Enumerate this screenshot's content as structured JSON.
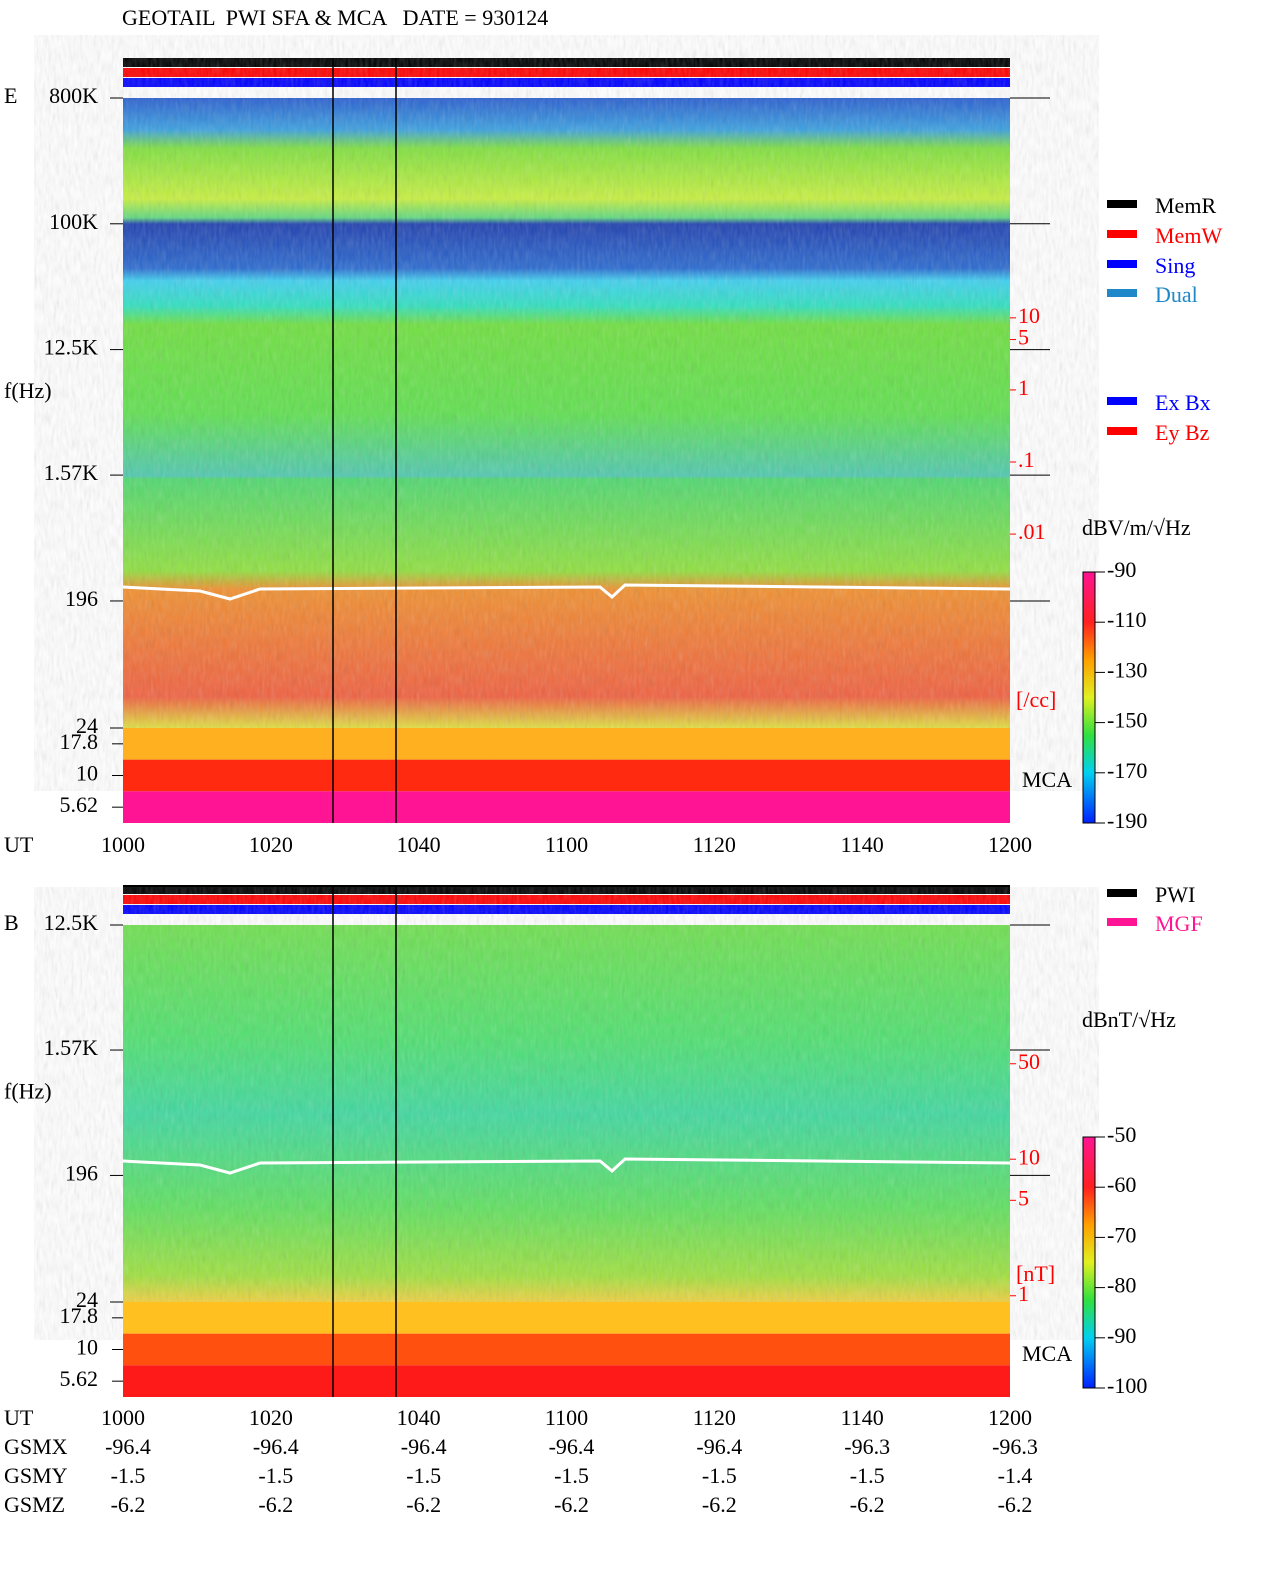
{
  "chart_data": [
    {
      "type": "spectrogram",
      "title": "GEOTAIL  PWI SFA & MCA   DATE = 930124",
      "panel": "E",
      "ylabel": "f(Hz)",
      "yscale": "log",
      "ylim": [
        24,
        800000
      ],
      "yticks": [
        {
          "value": 800000,
          "label": "800K"
        },
        {
          "value": 100000,
          "label": "100K"
        },
        {
          "value": 12500,
          "label": "12.5K"
        },
        {
          "value": 1570,
          "label": "1.57K"
        },
        196,
        24
      ],
      "mca_label": "MCA",
      "mca_yticks": [
        17.8,
        10,
        5.62
      ],
      "xlabel": "UT",
      "xticks": [
        "1000",
        "1020",
        "1040",
        "1100",
        "1120",
        "1140",
        "1200"
      ],
      "y2scale": "log",
      "y2lim": [
        11220,
        2.04e-05
      ],
      "y2ticks": [
        10,
        5,
        1,
        {
          "value": 0.1,
          "label": ".1"
        },
        {
          "value": 0.01,
          "label": ".01"
        }
      ],
      "y2label": "[/cc]",
      "colorbar": {
        "label": "dBV/m/√Hz",
        "lim": [
          -90,
          -190
        ],
        "ticks": [
          -90,
          -110,
          -130,
          -150,
          -170,
          -190
        ]
      },
      "legend": [
        {
          "name": "MemR",
          "color": "#000000"
        },
        {
          "name": "MemW",
          "color": "#ff0000"
        },
        {
          "name": "Sing",
          "color": "#0000ff"
        },
        {
          "name": "Dual",
          "color": "#1e88c8"
        }
      ],
      "legend2": [
        {
          "name": "Ex Bx",
          "color": "#0000ff"
        },
        {
          "name": "Ey Bz",
          "color": "#ff0000"
        }
      ]
    },
    {
      "type": "spectrogram",
      "panel": "B",
      "ylabel": "f(Hz)",
      "yscale": "log",
      "ylim": [
        24,
        12500
      ],
      "yticks": [
        {
          "value": 12500,
          "label": "12.5K"
        },
        {
          "value": 1570,
          "label": "1.57K"
        },
        196,
        24
      ],
      "mca_label": "MCA",
      "mca_yticks": [
        17.8,
        10,
        5.62
      ],
      "xlabel": "UT",
      "xticks": [
        "1000",
        "1020",
        "1040",
        "1100",
        "1120",
        "1140",
        "1200"
      ],
      "y2scale": "log",
      "y2lim": [
        519,
        0.9
      ],
      "y2ticks": [
        50,
        10,
        5,
        1
      ],
      "y2label": "[nT]",
      "colorbar": {
        "label": "dBnT/√Hz",
        "lim": [
          -50,
          -100
        ],
        "ticks": [
          -50,
          -60,
          -70,
          -80,
          -90,
          -100
        ]
      },
      "legend": [
        {
          "name": "PWI",
          "color": "#000000"
        },
        {
          "name": "MGF",
          "color": "#ff1493"
        }
      ],
      "orbit": [
        {
          "name": "GSMX",
          "values": [
            -96.4,
            -96.4,
            -96.4,
            -96.4,
            -96.4,
            -96.3,
            -96.3
          ]
        },
        {
          "name": "GSMY",
          "values": [
            -1.5,
            -1.5,
            -1.5,
            -1.5,
            -1.5,
            -1.5,
            -1.4
          ]
        },
        {
          "name": "GSMZ",
          "values": [
            -6.2,
            -6.2,
            -6.2,
            -6.2,
            -6.2,
            -6.2,
            -6.2
          ]
        }
      ]
    }
  ]
}
